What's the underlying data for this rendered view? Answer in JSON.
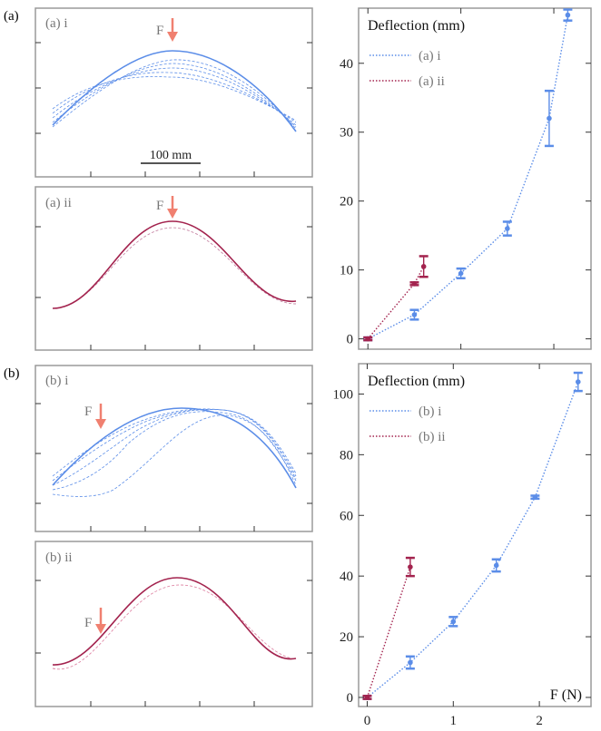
{
  "figure": {
    "label_a": "(a)",
    "label_b": "(b)"
  },
  "panels": {
    "ai": {
      "label": "(a) i",
      "force": "F",
      "scalebar": "100 mm"
    },
    "aii": {
      "label": "(a) ii",
      "force": "F"
    },
    "bi": {
      "label": "(b) i",
      "force": "F"
    },
    "bii": {
      "label": "(b) ii",
      "force": "F"
    }
  },
  "colors": {
    "blue": "#5b8de8",
    "crimson": "#a3234e",
    "arrow": "#f08070",
    "frame": "#9a9a9a"
  },
  "chart_data": [
    {
      "type": "scatter",
      "title": "Deflection (mm)",
      "xlabel": "",
      "ylabel": "Deflection (mm)",
      "xlim": [
        -0.1,
        2.4
      ],
      "ylim": [
        -1.5,
        48
      ],
      "y_ticks": [
        0,
        10,
        20,
        30,
        40
      ],
      "legend_position": "top-left",
      "series": [
        {
          "name": "(a) i",
          "color": "#5b8de8",
          "x": [
            0,
            0.5,
            1.0,
            1.5,
            1.95,
            2.15
          ],
          "y": [
            0,
            3.5,
            9.5,
            16,
            32,
            47
          ],
          "err_low": [
            0.2,
            0.7,
            0.7,
            1.0,
            4.0,
            0.8
          ],
          "err_high": [
            0.2,
            0.7,
            0.7,
            1.0,
            4.0,
            0.8
          ]
        },
        {
          "name": "(a) ii",
          "color": "#a3234e",
          "x": [
            0,
            0.5,
            0.6
          ],
          "y": [
            0,
            8,
            10.5
          ],
          "err_low": [
            0.2,
            0.2,
            1.5
          ],
          "err_high": [
            0.2,
            0.2,
            1.5
          ]
        }
      ]
    },
    {
      "type": "scatter",
      "title": "Deflection (mm)",
      "xlabel": "F (N)",
      "ylabel": "Deflection (mm)",
      "xlim": [
        -0.1,
        2.6
      ],
      "ylim": [
        -3,
        110
      ],
      "x_ticks": [
        0,
        1,
        2
      ],
      "y_ticks": [
        0,
        20,
        40,
        60,
        80,
        100
      ],
      "legend_position": "top-left",
      "series": [
        {
          "name": "(b) i",
          "color": "#5b8de8",
          "x": [
            0,
            0.5,
            1.0,
            1.5,
            1.95,
            2.45
          ],
          "y": [
            0,
            11.5,
            25,
            43.5,
            66,
            104
          ],
          "err_low": [
            0.5,
            2,
            1.5,
            2,
            0.5,
            3
          ],
          "err_high": [
            0.5,
            2,
            1.5,
            2,
            0.5,
            3
          ]
        },
        {
          "name": "(b) ii",
          "color": "#a3234e",
          "x": [
            0,
            0.5
          ],
          "y": [
            0,
            43
          ],
          "err_low": [
            0.5,
            3
          ],
          "err_high": [
            0.5,
            3
          ]
        }
      ]
    }
  ]
}
